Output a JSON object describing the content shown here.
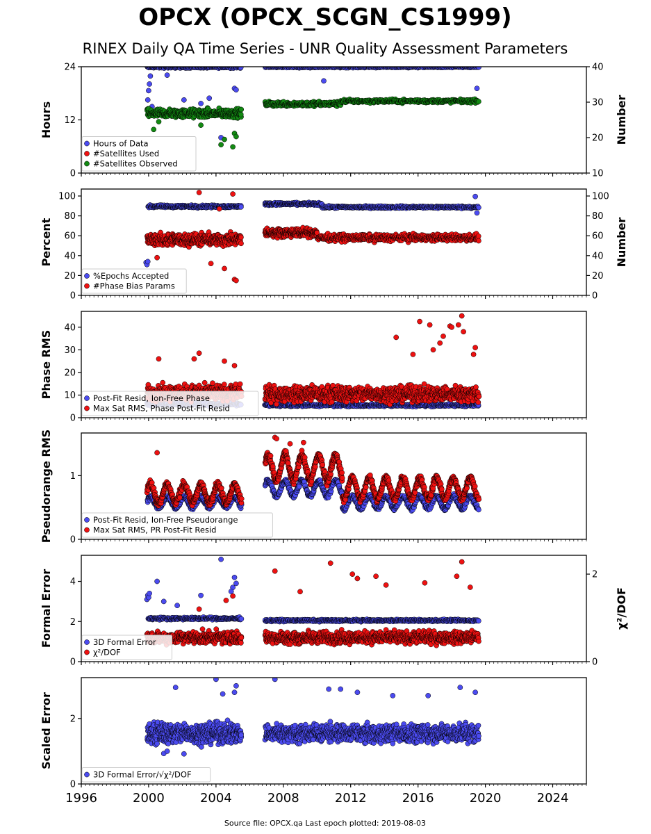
{
  "title": "OPCX (OPCX_SCGN_CS1999)",
  "subtitle": "RINEX Daily QA Time Series - UNR Quality Assessment Parameters",
  "footer": "Source file: OPCX.qa Last epoch plotted: 2019-08-03",
  "colors": {
    "blue": "#4b4bf0",
    "red": "#ee1111",
    "green": "#138a13",
    "edge": "#000000"
  },
  "chart_data": [
    {
      "type": "scatter",
      "ylabel": "Hours",
      "ylabel_right": "Number",
      "xlim": [
        1996,
        2026
      ],
      "ylim": [
        0,
        24
      ],
      "yticks": [
        "0",
        "12",
        "24"
      ],
      "ylim_right": [
        10,
        40
      ],
      "yticks_right": [
        "10",
        "20",
        "30",
        "40"
      ],
      "legend": [
        "Hours of Data",
        "#Satellites Used",
        "#Satellites Observed"
      ],
      "legend_loc": "lower-left",
      "series": [
        {
          "name": "Hours of Data",
          "axis": "left",
          "color": "blue",
          "segments": [
            {
              "x0": 1999.9,
              "x1": 2005.5,
              "base": 23.9,
              "spread": 0.3,
              "n": 220
            },
            {
              "x0": 2006.9,
              "x1": 2019.6,
              "base": 23.95,
              "spread": 0.25,
              "n": 420
            }
          ],
          "outliers": [
            [
              1999.95,
              16.5
            ],
            [
              2000.0,
              18.6
            ],
            [
              2000.05,
              20.1
            ],
            [
              2000.1,
              21.9
            ],
            [
              2000.2,
              15.0
            ],
            [
              2001.1,
              22.1
            ],
            [
              2002.1,
              16.5
            ],
            [
              2003.1,
              15.7
            ],
            [
              2003.6,
              16.9
            ],
            [
              2004.3,
              8.0
            ],
            [
              2005.1,
              19.1
            ],
            [
              2005.2,
              18.8
            ],
            [
              2010.4,
              20.8
            ],
            [
              2019.5,
              19.1
            ]
          ]
        },
        {
          "name": "#Satellites Used",
          "axis": "right",
          "color": "red",
          "segments": [],
          "outliers": []
        },
        {
          "name": "#Satellites Observed",
          "axis": "right",
          "color": "green",
          "segments": [
            {
              "x0": 1999.9,
              "x1": 2005.5,
              "base": 26.8,
              "spread": 1.8,
              "n": 360
            },
            {
              "x0": 2006.9,
              "x1": 2011.4,
              "base": 29.5,
              "spread": 1.0,
              "n": 200
            },
            {
              "x0": 2011.4,
              "x1": 2019.6,
              "base": 30.3,
              "spread": 0.7,
              "n": 300
            }
          ],
          "outliers": [
            [
              2000.3,
              22.3
            ],
            [
              2000.6,
              24.5
            ],
            [
              2003.1,
              23.5
            ],
            [
              2004.3,
              18.0
            ],
            [
              2004.5,
              19.5
            ],
            [
              2005.0,
              17.4
            ],
            [
              2005.1,
              21.2
            ],
            [
              2005.2,
              20.3
            ]
          ]
        }
      ]
    },
    {
      "type": "scatter",
      "ylabel": "Percent",
      "ylabel_right": "Number",
      "xlim": [
        1996,
        2026
      ],
      "ylim": [
        0,
        107
      ],
      "yticks": [
        "0",
        "20",
        "40",
        "60",
        "80",
        "100"
      ],
      "ylim_right": [
        0,
        107
      ],
      "yticks_right": [
        "0",
        "20",
        "40",
        "60",
        "80",
        "100"
      ],
      "legend": [
        "%Epochs Accepted",
        "#Phase Bias Params"
      ],
      "legend_loc": "lower-left",
      "series": [
        {
          "name": "%Epochs Accepted",
          "axis": "left",
          "color": "blue",
          "segments": [
            {
              "x0": 1999.95,
              "x1": 2005.5,
              "base": 89.5,
              "spread": 1.8,
              "n": 260
            },
            {
              "x0": 2006.9,
              "x1": 2010.3,
              "base": 92.0,
              "spread": 1.8,
              "n": 200
            },
            {
              "x0": 2010.3,
              "x1": 2019.6,
              "base": 88.8,
              "spread": 1.6,
              "n": 360
            }
          ],
          "outliers": [
            [
              1999.85,
              33
            ],
            [
              1999.9,
              31
            ],
            [
              1999.95,
              34
            ],
            [
              2019.4,
              99.5
            ],
            [
              2019.5,
              83
            ]
          ]
        },
        {
          "name": "#Phase Bias Params",
          "axis": "right",
          "color": "red",
          "segments": [
            {
              "x0": 1999.9,
              "x1": 2005.5,
              "base": 56,
              "spread": 9,
              "n": 420
            },
            {
              "x0": 2006.9,
              "x1": 2010.0,
              "base": 63,
              "spread": 6,
              "n": 250
            },
            {
              "x0": 2010.0,
              "x1": 2019.6,
              "base": 58,
              "spread": 5,
              "n": 480
            }
          ],
          "outliers": [
            [
              2003.0,
              103.5
            ],
            [
              2004.2,
              87
            ],
            [
              2005.0,
              102
            ],
            [
              2005.1,
              16
            ],
            [
              2005.2,
              15
            ],
            [
              2000.5,
              38
            ],
            [
              2003.7,
              32
            ],
            [
              2004.5,
              27
            ]
          ]
        }
      ]
    },
    {
      "type": "scatter",
      "ylabel": "Phase RMS",
      "xlim": [
        1996,
        2026
      ],
      "ylim": [
        0,
        47
      ],
      "yticks": [
        "0",
        "10",
        "20",
        "30",
        "40"
      ],
      "legend": [
        "Post-Fit Resid, Ion-Free Phase",
        "Max Sat RMS, Phase Post-Fit Resid"
      ],
      "legend_loc": "lower-left",
      "series": [
        {
          "name": "Post-Fit Resid, Ion-Free Phase",
          "axis": "left",
          "color": "blue",
          "segments": [
            {
              "x0": 1999.9,
              "x1": 2005.5,
              "base": 6.0,
              "spread": 1.0,
              "n": 250
            },
            {
              "x0": 2006.9,
              "x1": 2019.6,
              "base": 5.5,
              "spread": 0.8,
              "n": 500
            }
          ],
          "outliers": []
        },
        {
          "name": "Max Sat RMS, Phase Post-Fit Resid",
          "axis": "left",
          "color": "red",
          "segments": [
            {
              "x0": 1999.9,
              "x1": 2005.5,
              "base": 11.0,
              "spread": 5.0,
              "n": 420
            },
            {
              "x0": 2006.9,
              "x1": 2019.6,
              "base": 10.5,
              "spread": 5.0,
              "n": 900
            }
          ],
          "outliers": [
            [
              2000.6,
              26
            ],
            [
              2002.7,
              26
            ],
            [
              2003.0,
              28.5
            ],
            [
              2004.5,
              25
            ],
            [
              2005.1,
              23
            ],
            [
              2014.7,
              35.5
            ],
            [
              2016.1,
              42.5
            ],
            [
              2016.7,
              41
            ],
            [
              2017.3,
              33
            ],
            [
              2017.5,
              36
            ],
            [
              2017.9,
              40.5
            ],
            [
              2018.0,
              40
            ],
            [
              2018.4,
              41
            ],
            [
              2018.6,
              45
            ],
            [
              2018.7,
              38
            ],
            [
              2019.4,
              31
            ],
            [
              2019.3,
              28
            ],
            [
              2016.9,
              30
            ],
            [
              2015.7,
              28
            ]
          ]
        }
      ]
    },
    {
      "type": "scatter",
      "ylabel": "Pseudorange RMS",
      "xlim": [
        1996,
        2026
      ],
      "ylim": [
        0,
        1.67
      ],
      "yticks": [
        "0",
        "1"
      ],
      "legend": [
        "Post-Fit Resid, Ion-Free Pseudorange",
        "Max Sat RMS, PR Post-Fit Resid"
      ],
      "legend_loc": "lower-left",
      "series": [
        {
          "name": "Post-Fit Resid, Ion-Free Pseudorange",
          "axis": "left",
          "color": "blue",
          "wave": true,
          "segments": [
            {
              "x0": 1999.9,
              "x1": 2005.5,
              "base": 0.58,
              "amp": 0.08,
              "spread": 0.05,
              "n": 320
            },
            {
              "x0": 2006.9,
              "x1": 2011.5,
              "base": 0.8,
              "amp": 0.12,
              "spread": 0.05,
              "n": 280
            },
            {
              "x0": 2011.5,
              "x1": 2019.6,
              "base": 0.58,
              "amp": 0.1,
              "spread": 0.05,
              "n": 440
            }
          ],
          "outliers": []
        },
        {
          "name": "Max Sat RMS, PR Post-Fit Resid",
          "axis": "left",
          "color": "red",
          "wave": true,
          "segments": [
            {
              "x0": 1999.9,
              "x1": 2005.5,
              "base": 0.72,
              "amp": 0.14,
              "spread": 0.09,
              "n": 420
            },
            {
              "x0": 2006.9,
              "x1": 2011.5,
              "base": 1.12,
              "amp": 0.2,
              "spread": 0.1,
              "n": 380
            },
            {
              "x0": 2011.5,
              "x1": 2019.6,
              "base": 0.8,
              "amp": 0.16,
              "spread": 0.09,
              "n": 620
            }
          ],
          "outliers": [
            [
              2000.5,
              1.36
            ],
            [
              2007.5,
              1.6
            ],
            [
              2007.6,
              1.58
            ],
            [
              2009.2,
              1.52
            ],
            [
              2008.4,
              1.5
            ]
          ]
        }
      ]
    },
    {
      "type": "scatter",
      "ylabel": "Formal Error",
      "ylabel_right": "χ²/DOF",
      "xlim": [
        1996,
        2026
      ],
      "ylim": [
        0,
        5.3
      ],
      "yticks": [
        "0",
        "2",
        "4"
      ],
      "ylim_right": [
        0,
        2.43
      ],
      "yticks_right": [
        "0",
        "2"
      ],
      "legend": [
        "3D Formal Error",
        "χ²/DOF"
      ],
      "legend_loc": "lower-left",
      "series": [
        {
          "name": "3D Formal Error",
          "axis": "left",
          "color": "blue",
          "segments": [
            {
              "x0": 1999.95,
              "x1": 2005.5,
              "base": 2.15,
              "spread": 0.08,
              "n": 260
            },
            {
              "x0": 2006.9,
              "x1": 2019.6,
              "base": 2.05,
              "spread": 0.07,
              "n": 520
            }
          ],
          "outliers": [
            [
              1999.9,
              3.1
            ],
            [
              1999.95,
              3.3
            ],
            [
              2000.0,
              3.2
            ],
            [
              2000.05,
              3.4
            ],
            [
              2000.5,
              4.0
            ],
            [
              2000.9,
              3.0
            ],
            [
              2001.7,
              2.8
            ],
            [
              2003.1,
              3.3
            ],
            [
              2004.3,
              5.1
            ],
            [
              2005.1,
              4.2
            ],
            [
              2005.2,
              3.9
            ],
            [
              2005.0,
              3.7
            ],
            [
              2004.9,
              3.5
            ]
          ]
        },
        {
          "name": "χ²/DOF",
          "axis": "right",
          "color": "red",
          "segments": [
            {
              "x0": 1999.9,
              "x1": 2005.5,
              "base": 0.55,
              "spread": 0.2,
              "n": 420
            },
            {
              "x0": 2006.9,
              "x1": 2019.6,
              "base": 0.55,
              "spread": 0.2,
              "n": 900
            }
          ],
          "outliers": [
            [
              2007.5,
              2.07
            ],
            [
              2010.8,
              2.25
            ],
            [
              2012.1,
              2.0
            ],
            [
              2012.4,
              1.9
            ],
            [
              2013.5,
              1.95
            ],
            [
              2014.1,
              1.75
            ],
            [
              2018.6,
              2.28
            ],
            [
              2018.3,
              1.95
            ],
            [
              2016.4,
              1.8
            ],
            [
              2019.1,
              1.7
            ],
            [
              2005.0,
              1.5
            ],
            [
              2004.6,
              1.4
            ],
            [
              2003.0,
              1.2
            ],
            [
              2009.0,
              1.6
            ]
          ]
        }
      ]
    },
    {
      "type": "scatter",
      "ylabel": "Scaled Error",
      "xlim": [
        1996,
        2026
      ],
      "ylim": [
        0,
        3.25
      ],
      "yticks": [
        "0",
        "2"
      ],
      "xticks": [
        "1996",
        "2000",
        "2004",
        "2008",
        "2012",
        "2016",
        "2020",
        "2024"
      ],
      "legend": [
        "3D Formal Error/√χ²/DOF"
      ],
      "legend_loc": "lower-left",
      "series": [
        {
          "name": "3D Formal Error/√χ²/DOF",
          "axis": "left",
          "color": "blue",
          "segments": [
            {
              "x0": 1999.9,
              "x1": 2005.5,
              "base": 1.55,
              "spread": 0.45,
              "n": 520
            },
            {
              "x0": 2006.9,
              "x1": 2019.6,
              "base": 1.55,
              "spread": 0.4,
              "n": 1000
            }
          ],
          "outliers": [
            [
              2000.9,
              0.93
            ],
            [
              2001.1,
              1.0
            ],
            [
              2002.1,
              0.92
            ],
            [
              2004.0,
              3.2
            ],
            [
              2005.2,
              3.0
            ],
            [
              2005.1,
              2.8
            ],
            [
              2007.5,
              3.2
            ],
            [
              2010.7,
              2.9
            ],
            [
              2011.4,
              2.9
            ],
            [
              2018.5,
              2.95
            ],
            [
              2019.4,
              2.8
            ],
            [
              2016.6,
              2.7
            ],
            [
              2014.5,
              2.7
            ],
            [
              2012.4,
              2.8
            ],
            [
              2001.6,
              2.95
            ],
            [
              2004.4,
              2.75
            ]
          ]
        }
      ]
    }
  ]
}
